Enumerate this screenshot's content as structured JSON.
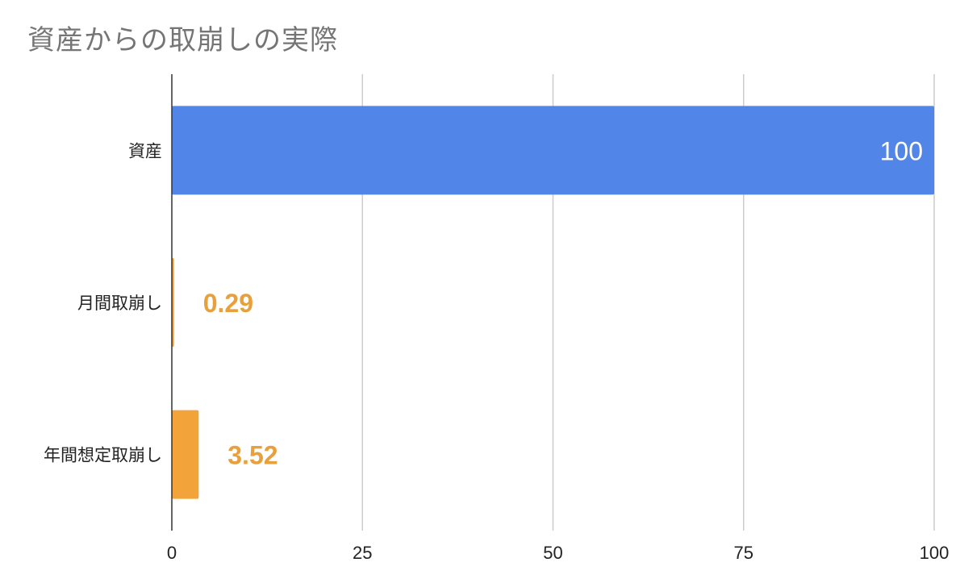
{
  "chart_data": {
    "type": "bar",
    "orientation": "horizontal",
    "title": "資産からの取崩しの実際",
    "categories": [
      "資産",
      "月間取崩し",
      "年間想定取崩し"
    ],
    "values": [
      100,
      0.29,
      3.52
    ],
    "data_labels": [
      "100",
      "0.29",
      "3.52"
    ],
    "bar_colors": [
      "#5186e8",
      "#f2a33a",
      "#f2a33a"
    ],
    "data_label_colors": [
      "#ffffff",
      "#e8a03c",
      "#e8a03c"
    ],
    "data_label_position": [
      "inside-end",
      "outside-end",
      "outside-end"
    ],
    "xlim": [
      0,
      100
    ],
    "xticks": [
      0,
      25,
      50,
      75,
      100
    ],
    "xtick_labels": [
      "0",
      "25",
      "50",
      "75",
      "100"
    ],
    "xlabel": "",
    "ylabel": "",
    "grid": true,
    "legend": "none"
  }
}
